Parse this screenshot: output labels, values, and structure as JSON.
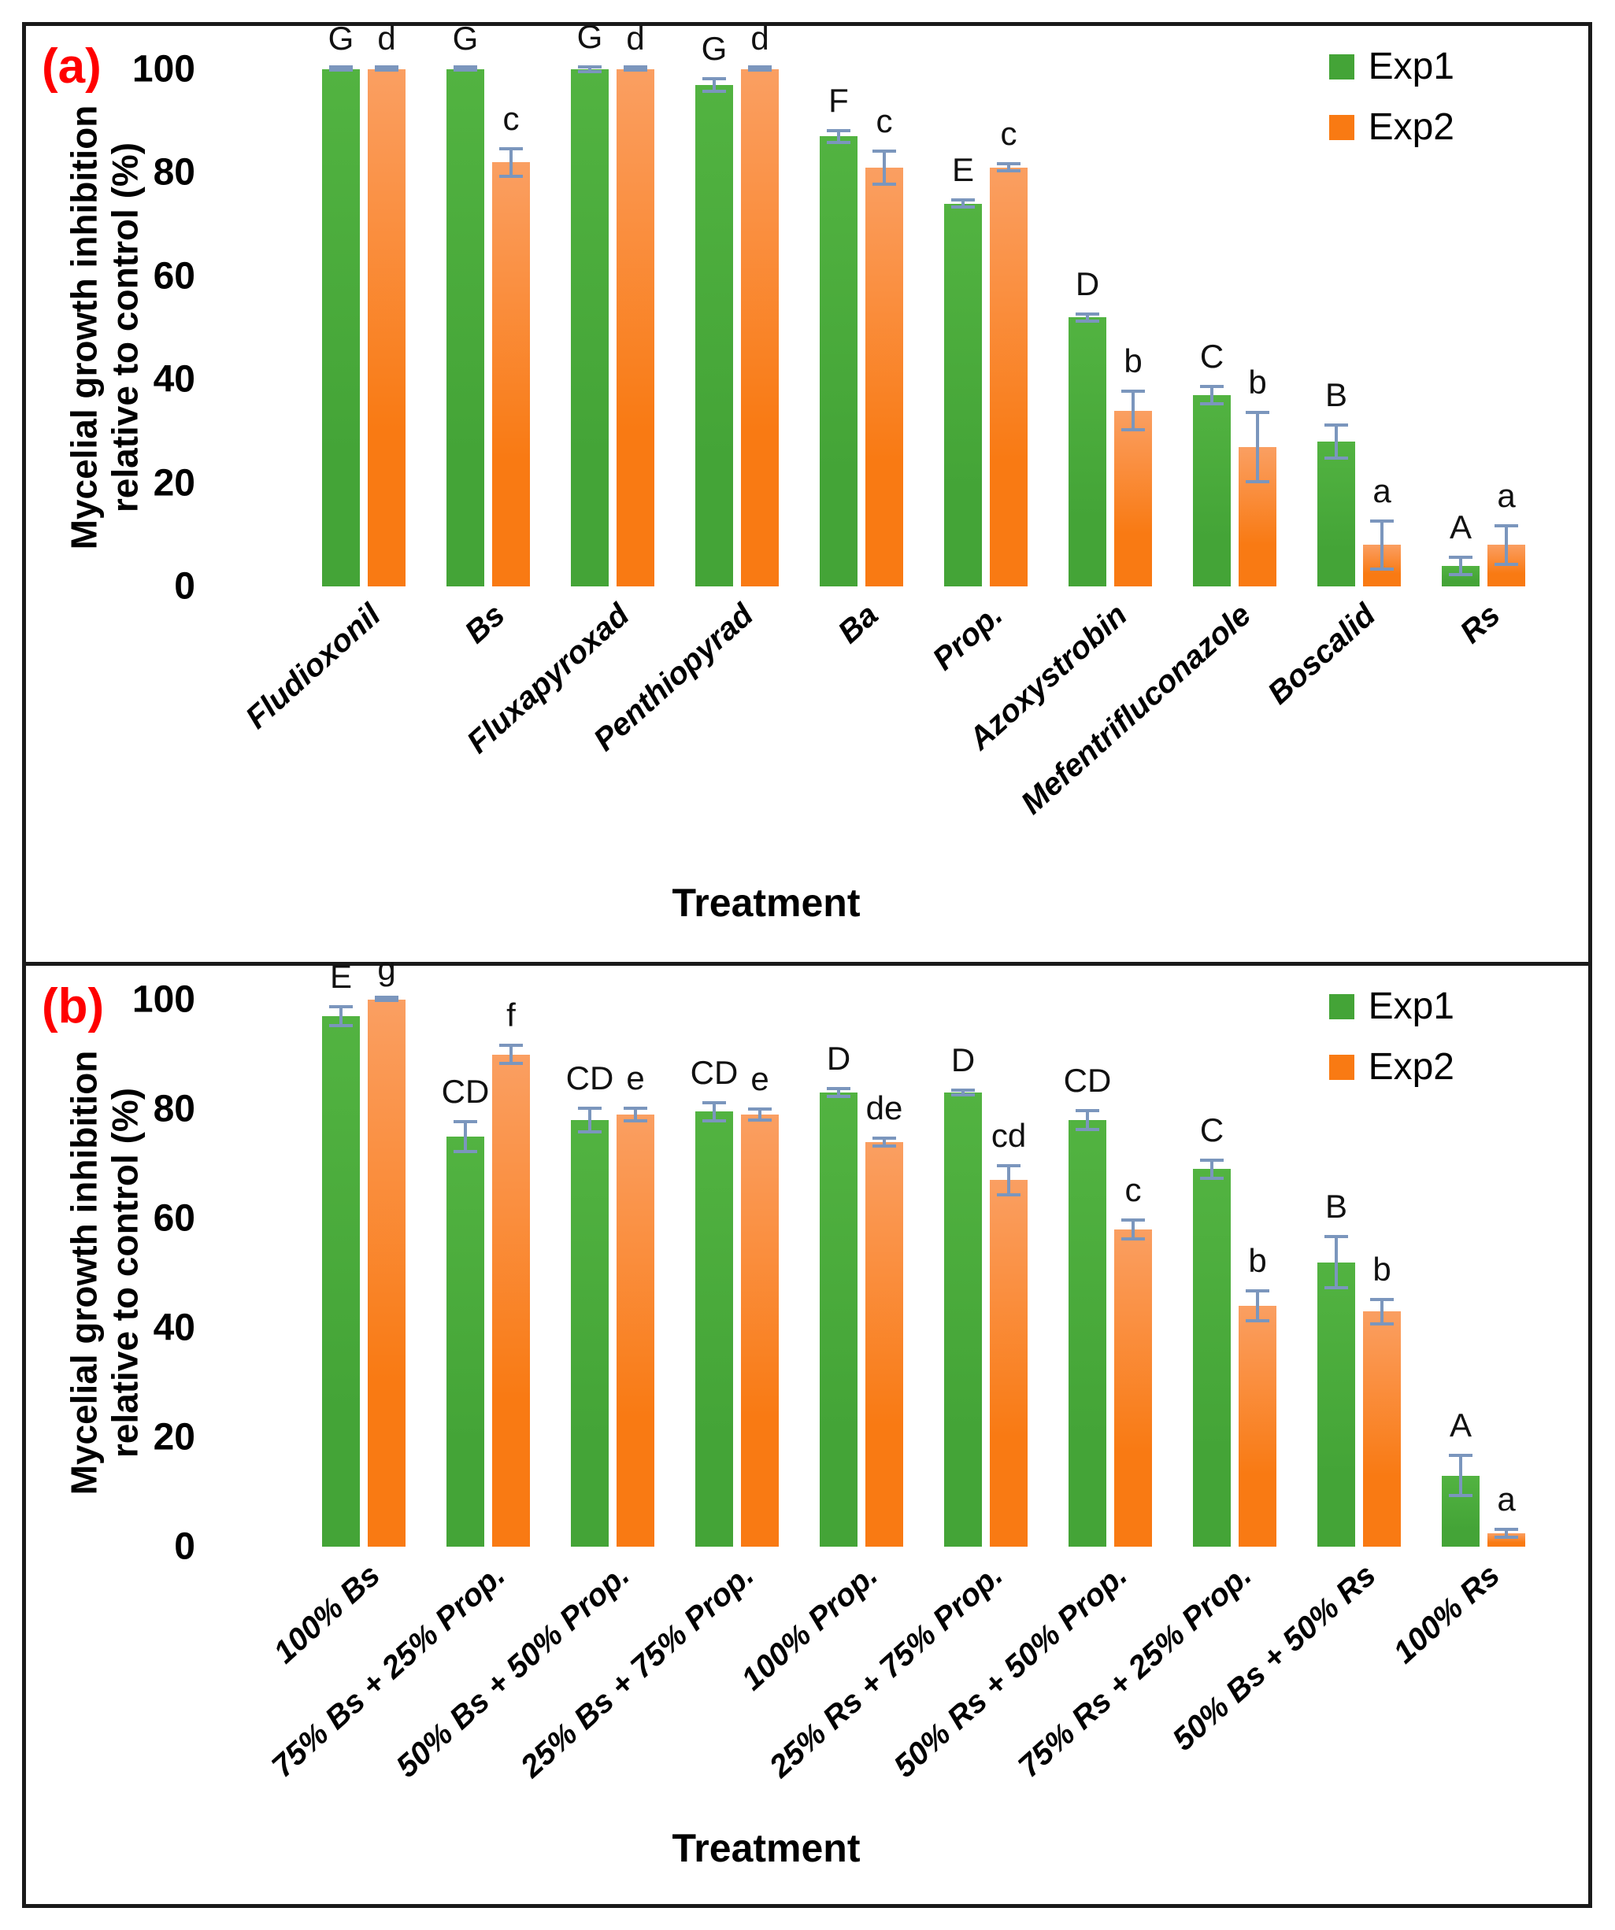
{
  "colors": {
    "exp1": "#44A437",
    "exp1_light": "#52B341",
    "exp2": "#F97A13",
    "exp2_light": "#FA9F62",
    "error_bar": "#7B96BD",
    "panel_label": "#FF0000"
  },
  "figure": {
    "panels": [
      {
        "panel_label": "(a)",
        "ylabel_line1": "Mycelial growth inhibition",
        "ylabel_line2": "relative to control (%)",
        "xlabel": "Treatment",
        "legend": [
          {
            "label": "Exp1",
            "color": "#44A437"
          },
          {
            "label": "Exp2",
            "color": "#F97A13"
          }
        ],
        "chart_data": {
          "type": "bar",
          "title": "",
          "xlabel": "Treatment",
          "ylabel": "Mycelial growth inhibition relative to control (%)",
          "ylim": [
            0,
            100
          ],
          "yticks": [
            100,
            80,
            60,
            40,
            20,
            0
          ],
          "grid": false,
          "legend_position": "top-right",
          "categories": [
            "Fludioxonil",
            "Bs",
            "Fluxapyroxad",
            "Penthiopyrad",
            "Ba",
            "Prop.",
            "Azoxystrobin",
            "Mefentrifluconazole",
            "Boscalid",
            "Rs"
          ],
          "series": [
            {
              "name": "Exp1",
              "values": [
                100,
                100,
                100,
                97,
                87,
                74,
                52,
                37,
                28,
                4
              ],
              "errors": [
                0.5,
                0.5,
                0.7,
                1.5,
                1.5,
                1,
                1,
                2,
                3.5,
                2
              ],
              "letters": [
                "G",
                "G",
                "G",
                "G",
                "F",
                "E",
                "D",
                "C",
                "B",
                "A"
              ]
            },
            {
              "name": "Exp2",
              "values": [
                100,
                82,
                100,
                100,
                81,
                81,
                34,
                27,
                8,
                8
              ],
              "errors": [
                0.5,
                3,
                0.5,
                0.5,
                3.5,
                1,
                4,
                7,
                5,
                4
              ],
              "letters": [
                "d",
                "c",
                "d",
                "d",
                "c",
                "c",
                "b",
                "b",
                "a",
                "a"
              ]
            }
          ]
        }
      },
      {
        "panel_label": "(b)",
        "ylabel_line1": "Mycelial growth inhibition",
        "ylabel_line2": "relative to control (%)",
        "xlabel": "Treatment",
        "legend": [
          {
            "label": "Exp1",
            "color": "#44A437"
          },
          {
            "label": "Exp2",
            "color": "#F97A13"
          }
        ],
        "chart_data": {
          "type": "bar",
          "title": "",
          "xlabel": "Treatment",
          "ylabel": "Mycelial growth inhibition relative to control (%)",
          "ylim": [
            0,
            100
          ],
          "yticks": [
            100,
            80,
            60,
            40,
            20,
            0
          ],
          "grid": false,
          "legend_position": "top-right",
          "categories": [
            "100% Bs",
            "75% Bs + 25% Prop.",
            "50% Bs + 50% Prop.",
            "25% Bs + 75% Prop.",
            "100% Prop.",
            "25% Rs + 75% Prop.",
            "50% Rs + 50% Prop.",
            "75% Rs + 25% Prop.",
            "50% Bs + 50% Rs",
            "100% Rs"
          ],
          "series": [
            {
              "name": "Exp1",
              "values": [
                97,
                75,
                78,
                79.5,
                83,
                83,
                78,
                69,
                52,
                13
              ],
              "errors": [
                2,
                3,
                2.5,
                2,
                1,
                0.7,
                2,
                2,
                5,
                4
              ],
              "letters": [
                "E",
                "CD",
                "CD",
                "CD",
                "D",
                "D",
                "CD",
                "C",
                "B",
                "A"
              ]
            },
            {
              "name": "Exp2",
              "values": [
                100,
                90,
                79,
                79,
                74,
                67,
                58,
                44,
                43,
                2.5
              ],
              "errors": [
                0.4,
                2,
                1.5,
                1.3,
                1,
                3,
                2,
                3,
                2.5,
                1
              ],
              "letters": [
                "g",
                "f",
                "e",
                "e",
                "de",
                "cd",
                "c",
                "b",
                "b",
                "a"
              ]
            }
          ]
        }
      }
    ]
  }
}
